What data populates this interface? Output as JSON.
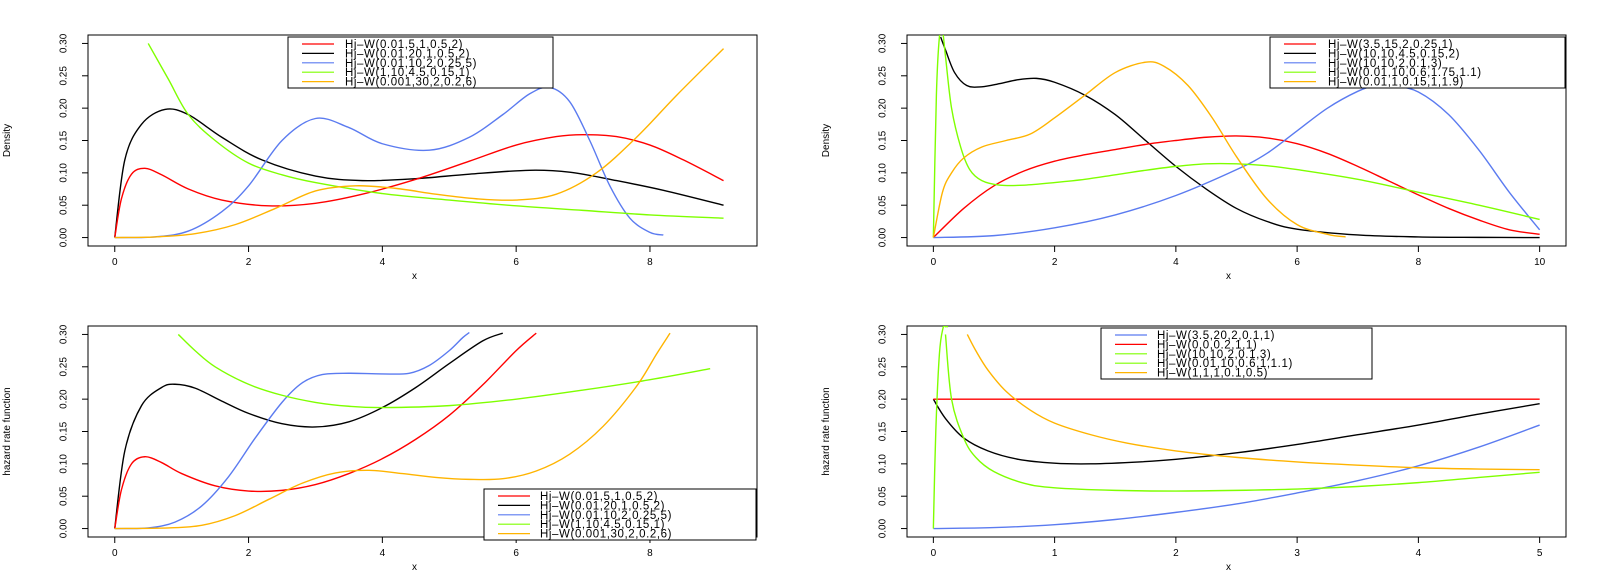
{
  "chart_data": [
    {
      "type": "line",
      "xlabel": "x",
      "ylabel": "Density",
      "xlim": [
        0,
        9.2
      ],
      "ylim": [
        0,
        0.3
      ],
      "xticks": [
        0,
        2,
        4,
        6,
        8
      ],
      "yticks": [
        "0.00",
        "0.05",
        "0.10",
        "0.15",
        "0.20",
        "0.25",
        "0.30"
      ],
      "legend_position": "top-center",
      "legend": [
        {
          "label": "Hj–W(0.01,5,1,0.5,2)",
          "color": "#ff0000"
        },
        {
          "label": "Hj–W(0.01,20,1,0.5,2)",
          "color": "#000000"
        },
        {
          "label": "Hj–W(0.01,10,2,0.25,5)",
          "color": "#5b7bf0"
        },
        {
          "label": "Hj–W(1,10,4.5,0.15,1)",
          "color": "#7fff00"
        },
        {
          "label": "Hj–W(0.001,30,2,0.2,6)",
          "color": "#ffb400"
        }
      ],
      "series": [
        {
          "color": "#000000",
          "x": [
            0,
            0.15,
            0.4,
            0.75,
            1.1,
            1.6,
            2.2,
            3,
            3.7,
            4.5,
            5.3,
            6.2,
            6.8,
            7.5,
            8.2,
            9.1
          ],
          "y": [
            0,
            0.12,
            0.175,
            0.198,
            0.19,
            0.155,
            0.12,
            0.095,
            0.088,
            0.091,
            0.098,
            0.104,
            0.101,
            0.088,
            0.073,
            0.05
          ]
        },
        {
          "color": "#ff0000",
          "x": [
            0,
            0.1,
            0.25,
            0.45,
            0.7,
            1.1,
            1.6,
            2.3,
            3,
            3.7,
            4.5,
            5.3,
            6,
            6.6,
            7,
            7.5,
            8,
            8.5,
            9.1
          ],
          "y": [
            0,
            0.06,
            0.098,
            0.107,
            0.097,
            0.075,
            0.058,
            0.049,
            0.053,
            0.067,
            0.09,
            0.118,
            0.143,
            0.156,
            0.159,
            0.156,
            0.143,
            0.12,
            0.088
          ]
        },
        {
          "color": "#5b7bf0",
          "x": [
            0,
            0.6,
            1.1,
            1.6,
            2,
            2.5,
            3,
            3.5,
            4,
            4.7,
            5.3,
            5.8,
            6.2,
            6.5,
            6.8,
            7.1,
            7.4,
            7.7,
            8,
            8.2
          ],
          "y": [
            0,
            0.001,
            0.01,
            0.04,
            0.08,
            0.15,
            0.184,
            0.17,
            0.145,
            0.135,
            0.155,
            0.19,
            0.222,
            0.232,
            0.21,
            0.15,
            0.08,
            0.03,
            0.008,
            0.004
          ]
        },
        {
          "color": "#7fff00",
          "x": [
            0.5,
            0.8,
            1.1,
            1.5,
            2,
            2.5,
            3,
            4,
            5,
            6,
            7,
            8,
            9.1
          ],
          "y": [
            0.3,
            0.245,
            0.19,
            0.15,
            0.115,
            0.097,
            0.085,
            0.068,
            0.058,
            0.049,
            0.042,
            0.035,
            0.03
          ]
        },
        {
          "color": "#ffb400",
          "x": [
            0,
            0.6,
            1.2,
            1.8,
            2.4,
            3,
            3.6,
            4.2,
            4.8,
            5.4,
            6,
            6.6,
            7.2,
            7.8,
            8.4,
            9.1
          ],
          "y": [
            0,
            0.001,
            0.006,
            0.02,
            0.045,
            0.072,
            0.08,
            0.076,
            0.067,
            0.06,
            0.058,
            0.067,
            0.1,
            0.155,
            0.22,
            0.292
          ]
        }
      ]
    },
    {
      "type": "line",
      "xlabel": "x",
      "ylabel": "Density",
      "xlim": [
        0,
        10
      ],
      "ylim": [
        0,
        0.3
      ],
      "xticks": [
        0,
        2,
        4,
        6,
        8,
        10
      ],
      "yticks": [
        "0.00",
        "0.05",
        "0.10",
        "0.15",
        "0.20",
        "0.25",
        "0.30"
      ],
      "legend_position": "top-right",
      "legend": [
        {
          "label": "Hj–W(3.5,15,2,0.25,1)",
          "color": "#ff0000"
        },
        {
          "label": "Hj–W(10,10,4.5,0.15,2)",
          "color": "#000000"
        },
        {
          "label": "Hj–W(10,10,2,0.1,3)",
          "color": "#5b7bf0"
        },
        {
          "label": "Hj–W(0.01,10,0.6,1.75,1.1)",
          "color": "#7fff00"
        },
        {
          "label": "Hj–W(0.01,1,0.15,1,1.9)",
          "color": "#ffb400"
        }
      ],
      "series": [
        {
          "color": "#000000",
          "x": [
            0.12,
            0.2,
            0.35,
            0.55,
            0.8,
            1.1,
            1.4,
            1.7,
            2,
            2.5,
            3,
            3.5,
            4,
            4.5,
            5,
            5.5,
            6,
            7,
            8,
            9,
            10
          ],
          "y": [
            0.31,
            0.29,
            0.255,
            0.235,
            0.233,
            0.238,
            0.244,
            0.246,
            0.24,
            0.22,
            0.19,
            0.15,
            0.11,
            0.075,
            0.045,
            0.025,
            0.013,
            0.004,
            0.001,
            0.0003,
            0
          ]
        },
        {
          "color": "#ff0000",
          "x": [
            0,
            0.5,
            1,
            1.5,
            2,
            2.5,
            3,
            3.5,
            4,
            4.5,
            5,
            5.5,
            6,
            6.5,
            7,
            7.5,
            8,
            8.5,
            9,
            9.5,
            10
          ],
          "y": [
            0,
            0.045,
            0.08,
            0.103,
            0.118,
            0.128,
            0.136,
            0.144,
            0.15,
            0.155,
            0.157,
            0.154,
            0.145,
            0.13,
            0.11,
            0.088,
            0.066,
            0.045,
            0.027,
            0.012,
            0.005
          ]
        },
        {
          "color": "#5b7bf0",
          "x": [
            0,
            1,
            2,
            3,
            4,
            5,
            5.5,
            6,
            6.5,
            7,
            7.3,
            7.6,
            8,
            8.5,
            9,
            9.5,
            10
          ],
          "y": [
            0,
            0.003,
            0.015,
            0.035,
            0.065,
            0.105,
            0.13,
            0.165,
            0.2,
            0.226,
            0.235,
            0.234,
            0.225,
            0.19,
            0.135,
            0.07,
            0.012
          ]
        },
        {
          "color": "#7fff00",
          "x": [
            0,
            0.05,
            0.1,
            0.15,
            0.2,
            0.3,
            0.45,
            0.6,
            0.8,
            1.1,
            1.5,
            2,
            2.5,
            3,
            3.5,
            4,
            4.5,
            5,
            5.5,
            6,
            7,
            8,
            9,
            10
          ],
          "y": [
            0,
            0.22,
            0.31,
            0.32,
            0.28,
            0.2,
            0.14,
            0.105,
            0.088,
            0.081,
            0.081,
            0.085,
            0.09,
            0.097,
            0.104,
            0.11,
            0.114,
            0.114,
            0.111,
            0.105,
            0.09,
            0.07,
            0.05,
            0.028
          ]
        },
        {
          "color": "#ffb400",
          "x": [
            0,
            0.15,
            0.3,
            0.5,
            0.8,
            1.2,
            1.6,
            2,
            2.5,
            3,
            3.5,
            3.8,
            4.2,
            4.6,
            5,
            5.5,
            6,
            6.5,
            6.8
          ],
          "y": [
            0,
            0.07,
            0.1,
            0.123,
            0.14,
            0.15,
            0.16,
            0.185,
            0.22,
            0.255,
            0.271,
            0.265,
            0.235,
            0.185,
            0.125,
            0.06,
            0.02,
            0.005,
            0.001
          ]
        }
      ]
    },
    {
      "type": "line",
      "xlabel": "x",
      "ylabel": "hazard rate function",
      "xlim": [
        0,
        9.2
      ],
      "ylim": [
        0,
        0.3
      ],
      "xticks": [
        0,
        2,
        4,
        6,
        8
      ],
      "yticks": [
        "0.00",
        "0.05",
        "0.10",
        "0.15",
        "0.20",
        "0.25",
        "0.30"
      ],
      "legend_position": "bottom-right",
      "legend": [
        {
          "label": "Hj–W(0.01,5,1,0.5,2)",
          "color": "#ff0000"
        },
        {
          "label": "Hj–W(0.01,20,1,0.5,2)",
          "color": "#000000"
        },
        {
          "label": "Hj–W(0.01,10,2,0.25,5)",
          "color": "#5b7bf0"
        },
        {
          "label": "Hj–W(1,10,4.5,0.15,1)",
          "color": "#7fff00"
        },
        {
          "label": "Hj–W(0.001,30,2,0.2,6)",
          "color": "#ffb400"
        }
      ],
      "series": [
        {
          "color": "#000000",
          "x": [
            0,
            0.15,
            0.4,
            0.7,
            0.9,
            1.2,
            1.6,
            2,
            2.5,
            3,
            3.5,
            4,
            4.5,
            5,
            5.5,
            5.8
          ],
          "y": [
            0,
            0.12,
            0.19,
            0.218,
            0.223,
            0.217,
            0.197,
            0.178,
            0.162,
            0.157,
            0.165,
            0.187,
            0.218,
            0.255,
            0.29,
            0.302
          ]
        },
        {
          "color": "#ff0000",
          "x": [
            0,
            0.1,
            0.25,
            0.45,
            0.7,
            1,
            1.5,
            2,
            2.5,
            3,
            3.5,
            4,
            4.5,
            5,
            5.5,
            6,
            6.3
          ],
          "y": [
            0,
            0.06,
            0.1,
            0.111,
            0.102,
            0.085,
            0.066,
            0.058,
            0.059,
            0.068,
            0.085,
            0.108,
            0.138,
            0.175,
            0.222,
            0.275,
            0.302
          ]
        },
        {
          "color": "#5b7bf0",
          "x": [
            0,
            0.5,
            0.9,
            1.3,
            1.7,
            2.1,
            2.5,
            2.8,
            3.1,
            3.5,
            4,
            4.4,
            4.7,
            5,
            5.2,
            5.3
          ],
          "y": [
            0,
            0.001,
            0.01,
            0.035,
            0.08,
            0.14,
            0.195,
            0.225,
            0.238,
            0.24,
            0.239,
            0.24,
            0.252,
            0.275,
            0.295,
            0.303
          ]
        },
        {
          "color": "#7fff00",
          "x": [
            0.95,
            1.2,
            1.5,
            2,
            2.5,
            3,
            3.5,
            4,
            5,
            6,
            7,
            8,
            8.9
          ],
          "y": [
            0.3,
            0.275,
            0.25,
            0.223,
            0.206,
            0.195,
            0.189,
            0.187,
            0.19,
            0.2,
            0.214,
            0.23,
            0.247
          ]
        },
        {
          "color": "#ffb400",
          "x": [
            0,
            0.8,
            1.3,
            1.8,
            2.3,
            2.8,
            3.3,
            3.8,
            4.3,
            4.8,
            5.3,
            5.8,
            6.3,
            6.8,
            7.3,
            7.8,
            8.1,
            8.3
          ],
          "y": [
            0,
            0.001,
            0.005,
            0.02,
            0.045,
            0.07,
            0.086,
            0.09,
            0.085,
            0.079,
            0.076,
            0.077,
            0.089,
            0.115,
            0.158,
            0.22,
            0.27,
            0.302
          ]
        }
      ]
    },
    {
      "type": "line",
      "xlabel": "x",
      "ylabel": "hazard rate function",
      "xlim": [
        0,
        5
      ],
      "ylim": [
        0,
        0.3
      ],
      "xticks": [
        0,
        1,
        2,
        3,
        4,
        5
      ],
      "yticks": [
        "0.00",
        "0.05",
        "0.10",
        "0.15",
        "0.20",
        "0.25",
        "0.30"
      ],
      "legend_position": "top-center",
      "legend": [
        {
          "label": "Hj–W(3.5,20,2,0.1,1)",
          "color": "#5b7bf0"
        },
        {
          "label": "Hj–W(0,0,0.2,1,1)",
          "color": "#ff0000"
        },
        {
          "label": "Hj–W(10,10,2,0.1,3)",
          "color": "#7fff00"
        },
        {
          "label": "Hj–W(0.01,10,0.6,1,1.1)",
          "color": "#7fff00"
        },
        {
          "label": "Hj–W(1,1,1,0.1,0.5)",
          "color": "#ffb400"
        }
      ],
      "series": [
        {
          "color": "#000000",
          "x": [
            0,
            0.1,
            0.25,
            0.45,
            0.7,
            1,
            1.3,
            1.7,
            2,
            2.5,
            3,
            3.5,
            4,
            4.5,
            5
          ],
          "y": [
            0.2,
            0.17,
            0.14,
            0.12,
            0.107,
            0.101,
            0.1,
            0.103,
            0.107,
            0.117,
            0.13,
            0.145,
            0.16,
            0.177,
            0.193
          ]
        },
        {
          "color": "#ff0000",
          "x": [
            0,
            5
          ],
          "y": [
            0.2,
            0.2
          ]
        },
        {
          "color": "#5b7bf0",
          "x": [
            0,
            0.5,
            1,
            1.5,
            2,
            2.5,
            3,
            3.5,
            4,
            4.5,
            5
          ],
          "y": [
            0,
            0.0015,
            0.006,
            0.014,
            0.025,
            0.038,
            0.055,
            0.074,
            0.097,
            0.126,
            0.16
          ]
        },
        {
          "color": "#7fff00",
          "x": [
            0,
            0.02,
            0.05,
            0.08,
            0.1,
            0.12
          ],
          "y": [
            0,
            0.15,
            0.27,
            0.31,
            0.312,
            0.312
          ]
        },
        {
          "color": "#7fff00",
          "x": [
            0.1,
            0.15,
            0.25,
            0.35,
            0.5,
            0.75,
            1,
            1.5,
            2,
            2.5,
            3,
            3.5,
            4,
            4.5,
            5
          ],
          "y": [
            0.3,
            0.2,
            0.14,
            0.11,
            0.088,
            0.07,
            0.063,
            0.059,
            0.058,
            0.059,
            0.061,
            0.065,
            0.071,
            0.079,
            0.087
          ]
        },
        {
          "color": "#ffb400",
          "x": [
            0.28,
            0.35,
            0.45,
            0.6,
            0.8,
            1,
            1.3,
            1.6,
            2,
            2.5,
            3,
            3.5,
            4,
            4.5,
            5
          ],
          "y": [
            0.3,
            0.275,
            0.245,
            0.212,
            0.183,
            0.163,
            0.145,
            0.132,
            0.12,
            0.11,
            0.103,
            0.098,
            0.094,
            0.092,
            0.091
          ]
        }
      ]
    }
  ]
}
